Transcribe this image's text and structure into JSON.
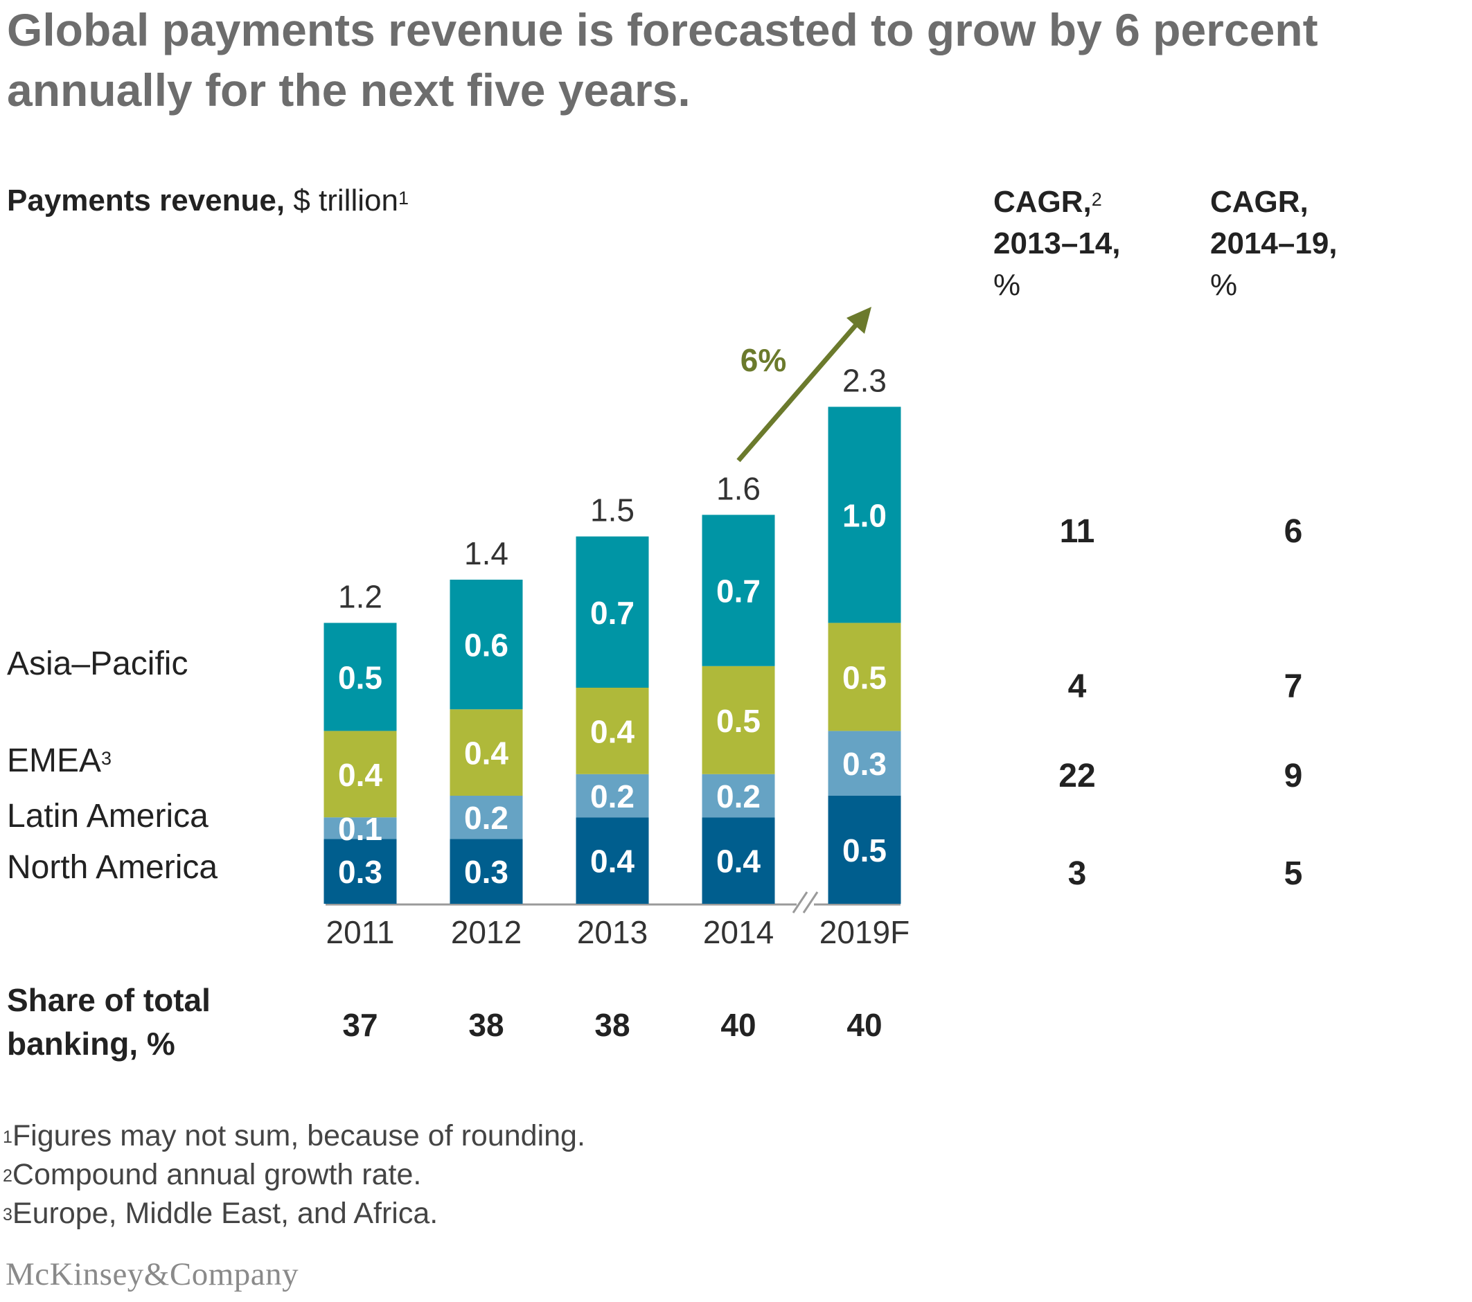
{
  "title": "Global payments revenue is forecasted to grow by 6 percent annually for the next five years.",
  "subtitle": {
    "bold": "Payments revenue,",
    "rest": " $ trillion",
    "note": "1"
  },
  "cagr_headers": [
    {
      "line1": "CAGR,",
      "note": "2",
      "line2": "2013–14,",
      "line3": "%"
    },
    {
      "line1": "CAGR,",
      "note": "",
      "line2": "2014–19,",
      "line3": "%"
    }
  ],
  "region_labels": [
    {
      "name": "Asia–Pacific",
      "note": ""
    },
    {
      "name": "EMEA",
      "note": "3"
    },
    {
      "name": "Latin America",
      "note": ""
    },
    {
      "name": "North America",
      "note": ""
    }
  ],
  "growth_label": "6%",
  "share_label": {
    "line1": "Share of total",
    "line2": "banking, %"
  },
  "footnotes": [
    {
      "note": "1",
      "text": "Figures may not sum, because of rounding."
    },
    {
      "note": "2",
      "text": "Compound annual growth rate."
    },
    {
      "note": "3",
      "text": "Europe, Middle East, and Africa."
    }
  ],
  "logo": "McKinsey&Company",
  "chart_data": {
    "type": "bar",
    "stacked": true,
    "categories": [
      "2011",
      "2012",
      "2013",
      "2014",
      "2019F"
    ],
    "axis_break_before": "2019F",
    "series": [
      {
        "name": "North America",
        "values": [
          0.3,
          0.3,
          0.4,
          0.4,
          0.5
        ],
        "color": "#005e8e"
      },
      {
        "name": "Latin America",
        "values": [
          0.1,
          0.2,
          0.2,
          0.2,
          0.3
        ],
        "color": "#66a3c4"
      },
      {
        "name": "EMEA",
        "values": [
          0.4,
          0.4,
          0.4,
          0.5,
          0.5
        ],
        "color": "#afb93a"
      },
      {
        "name": "Asia–Pacific",
        "values": [
          0.5,
          0.6,
          0.7,
          0.7,
          1.0
        ],
        "color": "#0095a5"
      }
    ],
    "totals": [
      1.2,
      1.4,
      1.5,
      1.6,
      2.3
    ],
    "share_of_total_banking": [
      37,
      38,
      38,
      40,
      40
    ],
    "cagr_2013_14": {
      "Asia–Pacific": 11,
      "EMEA": 4,
      "Latin America": 22,
      "North America": 3
    },
    "cagr_2014_19": {
      "Asia–Pacific": 6,
      "EMEA": 7,
      "Latin America": 9,
      "North America": 5
    },
    "growth_arrow_color": "#6b7a2c",
    "ylim": [
      0,
      2.3
    ]
  }
}
